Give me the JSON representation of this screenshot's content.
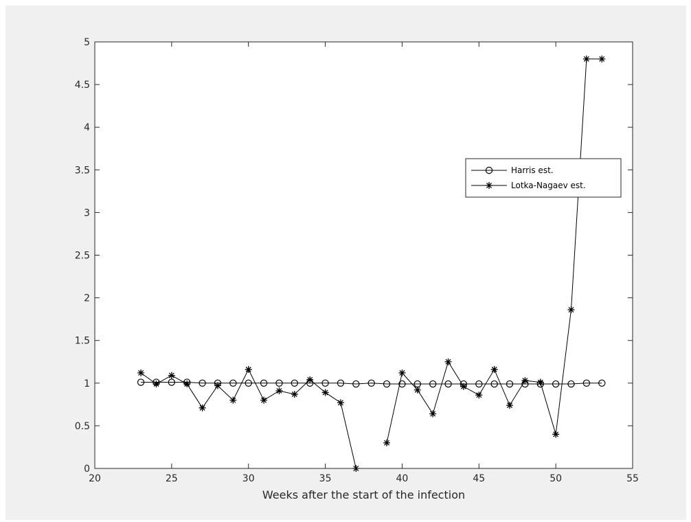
{
  "chart_data": {
    "type": "line",
    "title": "",
    "xlabel": "Weeks after the start of the infection",
    "ylabel": "",
    "xlim": [
      20,
      55
    ],
    "ylim": [
      0,
      5
    ],
    "xticks": [
      20,
      25,
      30,
      35,
      40,
      45,
      50,
      55
    ],
    "yticks": [
      0,
      0.5,
      1,
      1.5,
      2,
      2.5,
      3,
      3.5,
      4,
      4.5,
      5
    ],
    "grid": false,
    "legend_position": "upper-right",
    "colors": {
      "line": "#000000",
      "axis": "#262626",
      "plot_background": "#ffffff",
      "figure_background": "#f0f0f0"
    },
    "series": [
      {
        "name": "Harris est.",
        "marker": "circle",
        "x": [
          23,
          24,
          25,
          26,
          27,
          28,
          29,
          30,
          31,
          32,
          33,
          34,
          35,
          36,
          37,
          38,
          39,
          40,
          41,
          42,
          43,
          44,
          45,
          46,
          47,
          48,
          49,
          50,
          51,
          52,
          53
        ],
        "y": [
          1.01,
          1.01,
          1.01,
          1.01,
          1.0,
          1.0,
          1.0,
          1.0,
          1.0,
          1.0,
          1.0,
          1.0,
          1.0,
          1.0,
          0.99,
          1.0,
          0.99,
          0.99,
          0.99,
          0.99,
          0.99,
          0.99,
          0.99,
          0.99,
          0.99,
          0.99,
          0.99,
          0.99,
          0.99,
          1.0,
          1.0
        ]
      },
      {
        "name": "Lotka-Nagaev est.",
        "marker": "star",
        "x": [
          23,
          24,
          25,
          26,
          27,
          28,
          29,
          30,
          31,
          32,
          33,
          34,
          35,
          36,
          37,
          38,
          39,
          40,
          41,
          42,
          43,
          44,
          45,
          46,
          47,
          48,
          49,
          50,
          51,
          52,
          53
        ],
        "y": [
          1.12,
          0.99,
          1.09,
          0.99,
          0.71,
          0.97,
          0.8,
          1.16,
          0.8,
          0.91,
          0.87,
          1.04,
          0.89,
          0.77,
          0.0,
          null,
          0.3,
          1.12,
          0.92,
          0.64,
          1.25,
          0.96,
          0.86,
          1.16,
          0.74,
          1.03,
          1.01,
          0.4,
          1.86,
          4.8,
          4.8
        ]
      }
    ]
  }
}
